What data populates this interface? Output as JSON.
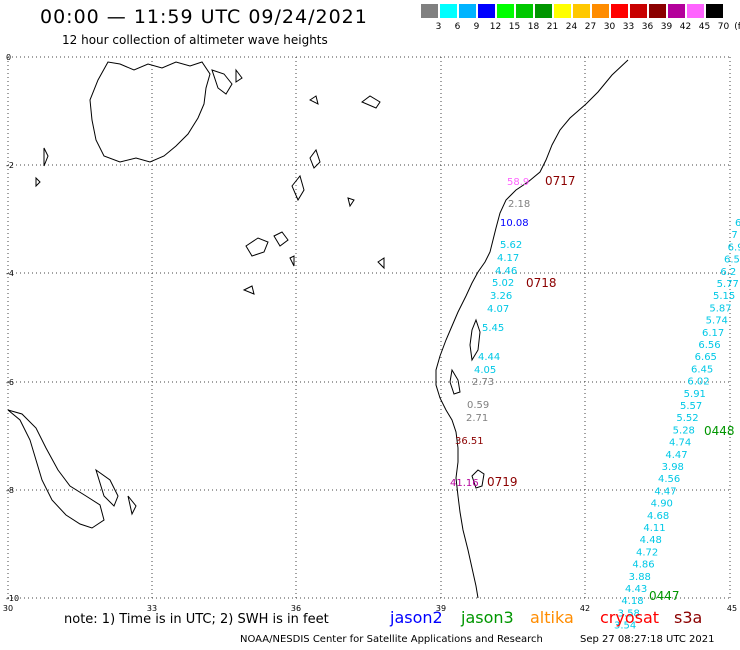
{
  "header": {
    "title": "00:00 — 11:59 UTC 09/24/2021",
    "subtitle": "12 hour collection of altimeter wave heights"
  },
  "legend": {
    "unit": "(ft)",
    "items": [
      {
        "label": "3",
        "color": "#808080"
      },
      {
        "label": "6",
        "color": "#00ffff"
      },
      {
        "label": "9",
        "color": "#00b4ff"
      },
      {
        "label": "12",
        "color": "#0000ff"
      },
      {
        "label": "15",
        "color": "#00ff00"
      },
      {
        "label": "18",
        "color": "#00c800"
      },
      {
        "label": "21",
        "color": "#009600"
      },
      {
        "label": "24",
        "color": "#ffff00"
      },
      {
        "label": "27",
        "color": "#ffc800"
      },
      {
        "label": "30",
        "color": "#ff8c00"
      },
      {
        "label": "33",
        "color": "#ff0000"
      },
      {
        "label": "36",
        "color": "#c80000"
      },
      {
        "label": "39",
        "color": "#8b0000"
      },
      {
        "label": "42",
        "color": "#b4009b"
      },
      {
        "label": "45",
        "color": "#ff64ff"
      },
      {
        "label": "70",
        "color": "#000000"
      }
    ]
  },
  "axes": {
    "y_labels": [
      "0",
      "-2",
      "-4",
      "-6",
      "-8",
      "-10"
    ],
    "x_labels": [
      "30",
      "33",
      "36",
      "39",
      "42",
      "45"
    ]
  },
  "track_labels": [
    {
      "text": "0717",
      "color": "#8b0000"
    },
    {
      "text": "0718",
      "color": "#8b0000"
    },
    {
      "text": "0719",
      "color": "#8b0000"
    },
    {
      "text": "0448",
      "color": "#009600"
    },
    {
      "text": "0447",
      "color": "#009600"
    }
  ],
  "track_west_values": [
    {
      "v": "58.9",
      "c": "#ff64ff"
    },
    {
      "v": "2.18",
      "c": "#808080"
    },
    {
      "v": "10.08",
      "c": "#0000ff"
    },
    {
      "v": "5.62",
      "c": "#00c8e6"
    },
    {
      "v": "4.17",
      "c": "#00c8e6"
    },
    {
      "v": "4.46",
      "c": "#00c8e6"
    },
    {
      "v": "5.02",
      "c": "#00c8e6"
    },
    {
      "v": "3.26",
      "c": "#00c8e6"
    },
    {
      "v": "4.07",
      "c": "#00c8e6"
    },
    {
      "v": "5.45",
      "c": "#00c8e6"
    },
    {
      "v": "4.44",
      "c": "#00c8e6"
    },
    {
      "v": "4.05",
      "c": "#00c8e6"
    },
    {
      "v": "2.73",
      "c": "#808080"
    },
    {
      "v": "0.59",
      "c": "#808080"
    },
    {
      "v": "2.71",
      "c": "#808080"
    },
    {
      "v": "36.51",
      "c": "#8b0000"
    },
    {
      "v": "41.16",
      "c": "#b4009b"
    }
  ],
  "track_east_values": [
    {
      "v": "6",
      "c": "#00c8e6"
    },
    {
      "v": "7",
      "c": "#00c8e6"
    },
    {
      "v": "6.9",
      "c": "#00c8e6"
    },
    {
      "v": "6.5",
      "c": "#00c8e6"
    },
    {
      "v": "6.2",
      "c": "#00c8e6"
    },
    {
      "v": "5.77",
      "c": "#00c8e6"
    },
    {
      "v": "5.15",
      "c": "#00c8e6"
    },
    {
      "v": "5.87",
      "c": "#00c8e6"
    },
    {
      "v": "5.74",
      "c": "#00c8e6"
    },
    {
      "v": "6.17",
      "c": "#00c8e6"
    },
    {
      "v": "6.56",
      "c": "#00c8e6"
    },
    {
      "v": "6.65",
      "c": "#00c8e6"
    },
    {
      "v": "6.45",
      "c": "#00c8e6"
    },
    {
      "v": "6.02",
      "c": "#00c8e6"
    },
    {
      "v": "5.91",
      "c": "#00c8e6"
    },
    {
      "v": "5.57",
      "c": "#00c8e6"
    },
    {
      "v": "5.52",
      "c": "#00c8e6"
    },
    {
      "v": "5.28",
      "c": "#00c8e6"
    },
    {
      "v": "4.74",
      "c": "#00c8e6"
    },
    {
      "v": "4.47",
      "c": "#00c8e6"
    },
    {
      "v": "3.98",
      "c": "#00c8e6"
    },
    {
      "v": "4.56",
      "c": "#00c8e6"
    },
    {
      "v": "4.47",
      "c": "#00c8e6"
    },
    {
      "v": "4.90",
      "c": "#00c8e6"
    },
    {
      "v": "4.68",
      "c": "#00c8e6"
    },
    {
      "v": "4.11",
      "c": "#00c8e6"
    },
    {
      "v": "4.48",
      "c": "#00c8e6"
    },
    {
      "v": "4.72",
      "c": "#00c8e6"
    },
    {
      "v": "4.86",
      "c": "#00c8e6"
    },
    {
      "v": "3.88",
      "c": "#00c8e6"
    },
    {
      "v": "4.43",
      "c": "#00c8e6"
    },
    {
      "v": "4.18",
      "c": "#00c8e6"
    },
    {
      "v": "3.58",
      "c": "#00c8e6"
    },
    {
      "v": "3.54",
      "c": "#00c8e6"
    }
  ],
  "footer": {
    "note": "note:  1) Time is in UTC;  2) SWH is in feet",
    "satellites": [
      {
        "name": "jason2",
        "color": "#0000ff"
      },
      {
        "name": "jason3",
        "color": "#009600"
      },
      {
        "name": "altika",
        "color": "#ff8c00"
      },
      {
        "name": "cryosat",
        "color": "#ff0000"
      },
      {
        "name": "s3a",
        "color": "#8b0000"
      }
    ],
    "credit": "NOAA/NESDIS Center for Satellite Applications and Research",
    "timestamp": "Sep 27 08:27:18 UTC 2021"
  }
}
